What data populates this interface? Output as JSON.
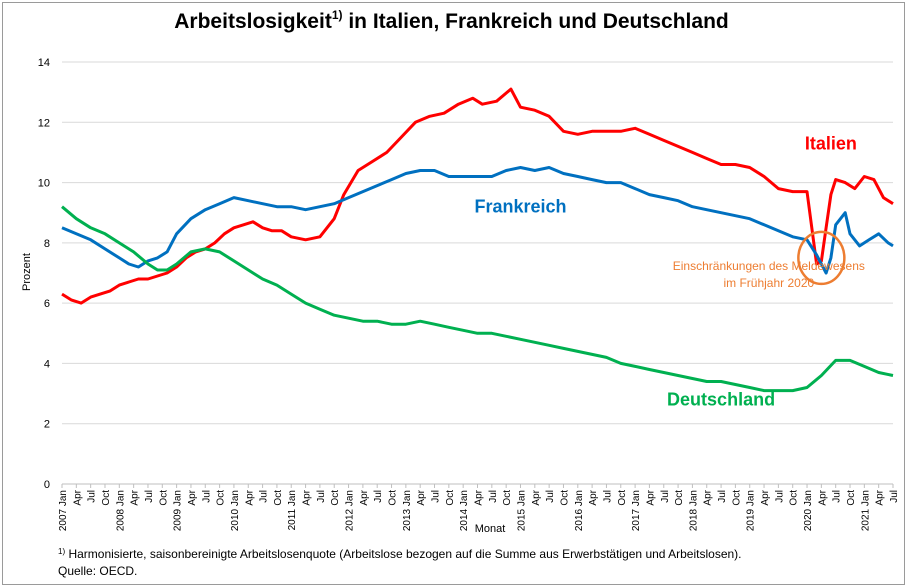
{
  "title_main": "Arbeitslosigkeit",
  "title_sup": "1)",
  "title_rest": " in Italien, Frankreich und Deutschland",
  "footnote_marker": "1)",
  "footnote_text": " Harmonisierte, saisonbereinigte Arbeitslosenquote (Arbeitslose bezogen auf die Summe aus Erwerbstätigen und Arbeitslosen).",
  "source": "Quelle: OECD.",
  "chart_data": {
    "type": "line",
    "xlabel": "Monat",
    "ylabel": "Prozent",
    "ylim": [
      0,
      14
    ],
    "yticks": [
      0,
      2,
      4,
      6,
      8,
      10,
      12,
      14
    ],
    "grid": "horizontal",
    "x_start": "2007 Jan",
    "x_end": "2021 Jul",
    "x_ticks": [
      "2007 Jan",
      "Apr",
      "Jul",
      "Oct",
      "2008 Jan",
      "Apr",
      "Jul",
      "Oct",
      "2009 Jan",
      "Apr",
      "Jul",
      "Oct",
      "2010 Jan",
      "Apr",
      "Jul",
      "Oct",
      "2011 Jan",
      "Apr",
      "Jul",
      "Oct",
      "2012 Jan",
      "Apr",
      "Jul",
      "Oct",
      "2013 Jan",
      "Apr",
      "Jul",
      "Oct",
      "2014 Jan",
      "Apr",
      "Jul",
      "Oct",
      "2015 Jan",
      "Apr",
      "Jul",
      "Oct",
      "2016 Jan",
      "Apr",
      "Jul",
      "Oct",
      "2017 Jan",
      "Apr",
      "Jul",
      "Oct",
      "2018 Jan",
      "Apr",
      "Jul",
      "Oct",
      "2019 Jan",
      "Apr",
      "Jul",
      "Oct",
      "2020 Jan",
      "Apr",
      "Jul",
      "Oct",
      "2021 Jan",
      "Apr",
      "Jul"
    ],
    "series": [
      {
        "name": "Italien",
        "color": "#ff0000",
        "label_at": {
          "date": "2020 Jun",
          "value": 11.1
        },
        "points": [
          [
            "2007 Jan",
            6.3
          ],
          [
            "2007 Mar",
            6.1
          ],
          [
            "2007 May",
            6.0
          ],
          [
            "2007 Jul",
            6.2
          ],
          [
            "2007 Sep",
            6.3
          ],
          [
            "2007 Nov",
            6.4
          ],
          [
            "2008 Jan",
            6.6
          ],
          [
            "2008 Mar",
            6.7
          ],
          [
            "2008 May",
            6.8
          ],
          [
            "2008 Jul",
            6.8
          ],
          [
            "2008 Sep",
            6.9
          ],
          [
            "2008 Nov",
            7.0
          ],
          [
            "2009 Jan",
            7.2
          ],
          [
            "2009 Mar",
            7.5
          ],
          [
            "2009 May",
            7.7
          ],
          [
            "2009 Jul",
            7.8
          ],
          [
            "2009 Sep",
            8.0
          ],
          [
            "2009 Nov",
            8.3
          ],
          [
            "2010 Jan",
            8.5
          ],
          [
            "2010 Mar",
            8.6
          ],
          [
            "2010 May",
            8.7
          ],
          [
            "2010 Jul",
            8.5
          ],
          [
            "2010 Sep",
            8.4
          ],
          [
            "2010 Nov",
            8.4
          ],
          [
            "2011 Jan",
            8.2
          ],
          [
            "2011 Apr",
            8.1
          ],
          [
            "2011 Jul",
            8.2
          ],
          [
            "2011 Oct",
            8.8
          ],
          [
            "2011 Dec",
            9.6
          ],
          [
            "2012 Mar",
            10.4
          ],
          [
            "2012 Jun",
            10.7
          ],
          [
            "2012 Sep",
            11.0
          ],
          [
            "2012 Dec",
            11.5
          ],
          [
            "2013 Mar",
            12.0
          ],
          [
            "2013 Jun",
            12.2
          ],
          [
            "2013 Sep",
            12.3
          ],
          [
            "2013 Dec",
            12.6
          ],
          [
            "2014 Mar",
            12.8
          ],
          [
            "2014 May",
            12.6
          ],
          [
            "2014 Aug",
            12.7
          ],
          [
            "2014 Nov",
            13.1
          ],
          [
            "2015 Jan",
            12.5
          ],
          [
            "2015 Apr",
            12.4
          ],
          [
            "2015 Jul",
            12.2
          ],
          [
            "2015 Oct",
            11.7
          ],
          [
            "2016 Jan",
            11.6
          ],
          [
            "2016 Apr",
            11.7
          ],
          [
            "2016 Jul",
            11.7
          ],
          [
            "2016 Oct",
            11.7
          ],
          [
            "2017 Jan",
            11.8
          ],
          [
            "2017 Apr",
            11.6
          ],
          [
            "2017 Jul",
            11.4
          ],
          [
            "2017 Oct",
            11.2
          ],
          [
            "2018 Jan",
            11.0
          ],
          [
            "2018 Apr",
            10.8
          ],
          [
            "2018 Jul",
            10.6
          ],
          [
            "2018 Oct",
            10.6
          ],
          [
            "2019 Jan",
            10.5
          ],
          [
            "2019 Apr",
            10.2
          ],
          [
            "2019 Jul",
            9.8
          ],
          [
            "2019 Oct",
            9.7
          ],
          [
            "2020 Jan",
            9.7
          ],
          [
            "2020 Mar",
            7.3
          ],
          [
            "2020 Apr",
            7.4
          ],
          [
            "2020 May",
            8.5
          ],
          [
            "2020 Jun",
            9.6
          ],
          [
            "2020 Jul",
            10.1
          ],
          [
            "2020 Sep",
            10.0
          ],
          [
            "2020 Nov",
            9.8
          ],
          [
            "2021 Jan",
            10.2
          ],
          [
            "2021 Mar",
            10.1
          ],
          [
            "2021 May",
            9.5
          ],
          [
            "2021 Jul",
            9.3
          ]
        ]
      },
      {
        "name": "Frankreich",
        "color": "#0070c0",
        "label_at": {
          "date": "2015 Jan",
          "value": 9.0
        },
        "points": [
          [
            "2007 Jan",
            8.5
          ],
          [
            "2007 Apr",
            8.3
          ],
          [
            "2007 Jul",
            8.1
          ],
          [
            "2007 Oct",
            7.8
          ],
          [
            "2008 Jan",
            7.5
          ],
          [
            "2008 Mar",
            7.3
          ],
          [
            "2008 May",
            7.2
          ],
          [
            "2008 Jul",
            7.4
          ],
          [
            "2008 Sep",
            7.5
          ],
          [
            "2008 Nov",
            7.7
          ],
          [
            "2009 Jan",
            8.3
          ],
          [
            "2009 Apr",
            8.8
          ],
          [
            "2009 Jul",
            9.1
          ],
          [
            "2009 Oct",
            9.3
          ],
          [
            "2010 Jan",
            9.5
          ],
          [
            "2010 Apr",
            9.4
          ],
          [
            "2010 Jul",
            9.3
          ],
          [
            "2010 Oct",
            9.2
          ],
          [
            "2011 Jan",
            9.2
          ],
          [
            "2011 Apr",
            9.1
          ],
          [
            "2011 Jul",
            9.2
          ],
          [
            "2011 Oct",
            9.3
          ],
          [
            "2012 Jan",
            9.5
          ],
          [
            "2012 Apr",
            9.7
          ],
          [
            "2012 Jul",
            9.9
          ],
          [
            "2012 Oct",
            10.1
          ],
          [
            "2013 Jan",
            10.3
          ],
          [
            "2013 Apr",
            10.4
          ],
          [
            "2013 Jul",
            10.4
          ],
          [
            "2013 Oct",
            10.2
          ],
          [
            "2014 Jan",
            10.2
          ],
          [
            "2014 Apr",
            10.2
          ],
          [
            "2014 Jul",
            10.2
          ],
          [
            "2014 Oct",
            10.4
          ],
          [
            "2015 Jan",
            10.5
          ],
          [
            "2015 Apr",
            10.4
          ],
          [
            "2015 Jul",
            10.5
          ],
          [
            "2015 Oct",
            10.3
          ],
          [
            "2016 Jan",
            10.2
          ],
          [
            "2016 Apr",
            10.1
          ],
          [
            "2016 Jul",
            10.0
          ],
          [
            "2016 Oct",
            10.0
          ],
          [
            "2017 Jan",
            9.8
          ],
          [
            "2017 Apr",
            9.6
          ],
          [
            "2017 Jul",
            9.5
          ],
          [
            "2017 Oct",
            9.4
          ],
          [
            "2018 Jan",
            9.2
          ],
          [
            "2018 Apr",
            9.1
          ],
          [
            "2018 Jul",
            9.0
          ],
          [
            "2018 Oct",
            8.9
          ],
          [
            "2019 Jan",
            8.8
          ],
          [
            "2019 Apr",
            8.6
          ],
          [
            "2019 Jul",
            8.4
          ],
          [
            "2019 Oct",
            8.2
          ],
          [
            "2020 Jan",
            8.1
          ],
          [
            "2020 Mar",
            7.6
          ],
          [
            "2020 May",
            7.0
          ],
          [
            "2020 Jun",
            7.5
          ],
          [
            "2020 Jul",
            8.6
          ],
          [
            "2020 Sep",
            9.0
          ],
          [
            "2020 Oct",
            8.3
          ],
          [
            "2020 Dec",
            7.9
          ],
          [
            "2021 Feb",
            8.1
          ],
          [
            "2021 Apr",
            8.3
          ],
          [
            "2021 Jun",
            8.0
          ],
          [
            "2021 Jul",
            7.9
          ]
        ]
      },
      {
        "name": "Deutschland",
        "color": "#00b050",
        "label_at": {
          "date": "2018 Jul",
          "value": 2.6
        },
        "points": [
          [
            "2007 Jan",
            9.2
          ],
          [
            "2007 Apr",
            8.8
          ],
          [
            "2007 Jul",
            8.5
          ],
          [
            "2007 Oct",
            8.3
          ],
          [
            "2008 Jan",
            8.0
          ],
          [
            "2008 Apr",
            7.7
          ],
          [
            "2008 Jul",
            7.3
          ],
          [
            "2008 Sep",
            7.1
          ],
          [
            "2008 Nov",
            7.1
          ],
          [
            "2009 Jan",
            7.3
          ],
          [
            "2009 Apr",
            7.7
          ],
          [
            "2009 Jul",
            7.8
          ],
          [
            "2009 Oct",
            7.7
          ],
          [
            "2010 Jan",
            7.4
          ],
          [
            "2010 Apr",
            7.1
          ],
          [
            "2010 Jul",
            6.8
          ],
          [
            "2010 Oct",
            6.6
          ],
          [
            "2011 Jan",
            6.3
          ],
          [
            "2011 Apr",
            6.0
          ],
          [
            "2011 Jul",
            5.8
          ],
          [
            "2011 Oct",
            5.6
          ],
          [
            "2012 Jan",
            5.5
          ],
          [
            "2012 Apr",
            5.4
          ],
          [
            "2012 Jul",
            5.4
          ],
          [
            "2012 Oct",
            5.3
          ],
          [
            "2013 Jan",
            5.3
          ],
          [
            "2013 Apr",
            5.4
          ],
          [
            "2013 Jul",
            5.3
          ],
          [
            "2013 Oct",
            5.2
          ],
          [
            "2014 Jan",
            5.1
          ],
          [
            "2014 Apr",
            5.0
          ],
          [
            "2014 Jul",
            5.0
          ],
          [
            "2014 Oct",
            4.9
          ],
          [
            "2015 Jan",
            4.8
          ],
          [
            "2015 Apr",
            4.7
          ],
          [
            "2015 Jul",
            4.6
          ],
          [
            "2015 Oct",
            4.5
          ],
          [
            "2016 Jan",
            4.4
          ],
          [
            "2016 Apr",
            4.3
          ],
          [
            "2016 Jul",
            4.2
          ],
          [
            "2016 Oct",
            4.0
          ],
          [
            "2017 Jan",
            3.9
          ],
          [
            "2017 Apr",
            3.8
          ],
          [
            "2017 Jul",
            3.7
          ],
          [
            "2017 Oct",
            3.6
          ],
          [
            "2018 Jan",
            3.5
          ],
          [
            "2018 Apr",
            3.4
          ],
          [
            "2018 Jul",
            3.4
          ],
          [
            "2018 Oct",
            3.3
          ],
          [
            "2019 Jan",
            3.2
          ],
          [
            "2019 Apr",
            3.1
          ],
          [
            "2019 Jul",
            3.1
          ],
          [
            "2019 Oct",
            3.1
          ],
          [
            "2020 Jan",
            3.2
          ],
          [
            "2020 Apr",
            3.6
          ],
          [
            "2020 Jul",
            4.1
          ],
          [
            "2020 Oct",
            4.1
          ],
          [
            "2021 Jan",
            3.9
          ],
          [
            "2021 Apr",
            3.7
          ],
          [
            "2021 Jul",
            3.6
          ]
        ]
      }
    ],
    "annotation": {
      "lines": [
        "Einschränkungen des Meldewesens",
        "im Frühjahr 2020"
      ],
      "color": "#ed7d31",
      "circle_at": {
        "date": "2020 Apr",
        "value": 7.5
      },
      "text_anchor": {
        "date": "2019 May",
        "value": 7.1
      }
    }
  }
}
